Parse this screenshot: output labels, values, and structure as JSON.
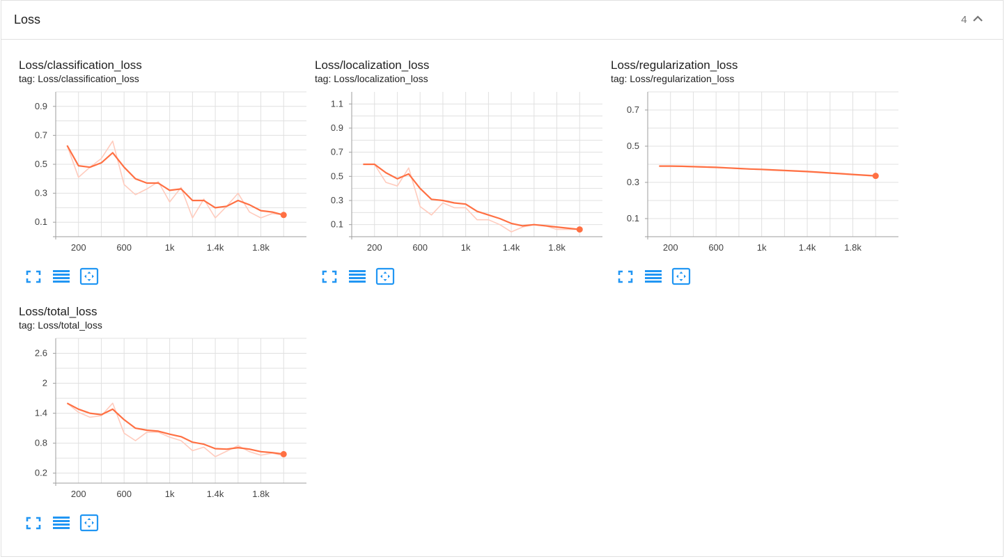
{
  "section": {
    "title": "Loss",
    "count": "4",
    "collapse_icon": "chevron-up-icon"
  },
  "colors": {
    "line": "#ff7043",
    "line_raw": "#ffcbbd",
    "grid": "#e0e0e0",
    "icon": "#2196f3"
  },
  "cards": [
    {
      "title": "Loss/classification_loss",
      "tag": "tag: Loss/classification_loss"
    },
    {
      "title": "Loss/localization_loss",
      "tag": "tag: Loss/localization_loss"
    },
    {
      "title": "Loss/regularization_loss",
      "tag": "tag: Loss/regularization_loss"
    },
    {
      "title": "Loss/total_loss",
      "tag": "tag: Loss/total_loss"
    }
  ],
  "card_buttons": [
    "fit-to-screen-icon",
    "data-table-icon",
    "fit-domain-icon"
  ],
  "chart_data": [
    {
      "type": "line",
      "title": "Loss/classification_loss",
      "xlim": [
        0,
        2200
      ],
      "ylim": [
        0,
        1.0
      ],
      "xticks": [
        200,
        600,
        1000,
        1400,
        1800
      ],
      "xtick_labels": [
        "200",
        "600",
        "1k",
        "1.4k",
        "1.8k"
      ],
      "yticks": [
        0.1,
        0.3,
        0.5,
        0.7,
        0.9
      ],
      "ytick_labels": [
        "0.1",
        "0.3",
        "0.5",
        "0.7",
        "0.9"
      ],
      "series": [
        {
          "name": "raw",
          "x": [
            100,
            200,
            300,
            400,
            500,
            600,
            700,
            800,
            900,
            1000,
            1100,
            1200,
            1300,
            1400,
            1500,
            1600,
            1700,
            1800,
            1900,
            2000
          ],
          "values": [
            0.63,
            0.41,
            0.48,
            0.54,
            0.66,
            0.36,
            0.29,
            0.33,
            0.38,
            0.24,
            0.34,
            0.13,
            0.26,
            0.13,
            0.21,
            0.3,
            0.17,
            0.13,
            0.16,
            0.15
          ]
        },
        {
          "name": "smoothed",
          "x": [
            100,
            200,
            300,
            400,
            500,
            600,
            700,
            800,
            900,
            1000,
            1100,
            1200,
            1300,
            1400,
            1500,
            1600,
            1700,
            1800,
            1900,
            2000
          ],
          "values": [
            0.63,
            0.49,
            0.48,
            0.51,
            0.58,
            0.48,
            0.4,
            0.37,
            0.37,
            0.32,
            0.33,
            0.25,
            0.25,
            0.2,
            0.21,
            0.25,
            0.22,
            0.18,
            0.17,
            0.15
          ]
        }
      ]
    },
    {
      "type": "line",
      "title": "Loss/localization_loss",
      "xlim": [
        0,
        2200
      ],
      "ylim": [
        0,
        1.2
      ],
      "xticks": [
        200,
        600,
        1000,
        1400,
        1800
      ],
      "xtick_labels": [
        "200",
        "600",
        "1k",
        "1.4k",
        "1.8k"
      ],
      "yticks": [
        0.1,
        0.3,
        0.5,
        0.7,
        0.9,
        1.1
      ],
      "ytick_labels": [
        "0.1",
        "0.3",
        "0.5",
        "0.7",
        "0.9",
        "1.1"
      ],
      "series": [
        {
          "name": "raw",
          "x": [
            100,
            200,
            300,
            400,
            500,
            600,
            700,
            800,
            900,
            1000,
            1100,
            1200,
            1300,
            1400,
            1500,
            1600,
            1700,
            1800,
            1900,
            2000
          ],
          "values": [
            0.6,
            0.6,
            0.45,
            0.42,
            0.57,
            0.25,
            0.18,
            0.28,
            0.24,
            0.24,
            0.14,
            0.14,
            0.1,
            0.04,
            0.08,
            0.1,
            0.09,
            0.06,
            0.06,
            0.06
          ]
        },
        {
          "name": "smoothed",
          "x": [
            100,
            200,
            300,
            400,
            500,
            600,
            700,
            800,
            900,
            1000,
            1100,
            1200,
            1300,
            1400,
            1500,
            1600,
            1700,
            1800,
            1900,
            2000
          ],
          "values": [
            0.6,
            0.6,
            0.53,
            0.48,
            0.52,
            0.4,
            0.31,
            0.3,
            0.28,
            0.27,
            0.21,
            0.18,
            0.15,
            0.11,
            0.09,
            0.1,
            0.09,
            0.08,
            0.07,
            0.06
          ]
        }
      ]
    },
    {
      "type": "line",
      "title": "Loss/regularization_loss",
      "xlim": [
        0,
        2200
      ],
      "ylim": [
        0,
        0.8
      ],
      "xticks": [
        200,
        600,
        1000,
        1400,
        1800
      ],
      "xtick_labels": [
        "200",
        "600",
        "1k",
        "1.4k",
        "1.8k"
      ],
      "yticks": [
        0.1,
        0.3,
        0.5,
        0.7
      ],
      "ytick_labels": [
        "0.1",
        "0.3",
        "0.5",
        "0.7"
      ],
      "series": [
        {
          "name": "raw",
          "x": [
            100,
            200,
            300,
            400,
            500,
            600,
            700,
            800,
            900,
            1000,
            1100,
            1200,
            1300,
            1400,
            1500,
            1600,
            1700,
            1800,
            1900,
            2000
          ],
          "values": [
            0.39,
            0.39,
            0.388,
            0.386,
            0.384,
            0.382,
            0.379,
            0.376,
            0.373,
            0.37,
            0.367,
            0.364,
            0.361,
            0.358,
            0.354,
            0.35,
            0.346,
            0.342,
            0.338,
            0.334
          ]
        },
        {
          "name": "smoothed",
          "x": [
            100,
            200,
            300,
            400,
            500,
            600,
            700,
            800,
            900,
            1000,
            1100,
            1200,
            1300,
            1400,
            1500,
            1600,
            1700,
            1800,
            1900,
            2000
          ],
          "values": [
            0.39,
            0.39,
            0.389,
            0.387,
            0.385,
            0.383,
            0.38,
            0.377,
            0.374,
            0.372,
            0.369,
            0.366,
            0.363,
            0.36,
            0.356,
            0.352,
            0.348,
            0.344,
            0.34,
            0.336
          ]
        }
      ]
    },
    {
      "type": "line",
      "title": "Loss/total_loss",
      "xlim": [
        0,
        2200
      ],
      "ylim": [
        0,
        2.9
      ],
      "xticks": [
        200,
        600,
        1000,
        1400,
        1800
      ],
      "xtick_labels": [
        "200",
        "600",
        "1k",
        "1.4k",
        "1.8k"
      ],
      "yticks": [
        0.2,
        0.8,
        1.4,
        2.0,
        2.6
      ],
      "ytick_labels": [
        "0.2",
        "0.8",
        "1.4",
        "2",
        "2.6"
      ],
      "series": [
        {
          "name": "raw",
          "x": [
            100,
            200,
            300,
            400,
            500,
            600,
            700,
            800,
            900,
            1000,
            1100,
            1200,
            1300,
            1400,
            1500,
            1600,
            1700,
            1800,
            1900,
            2000
          ],
          "values": [
            1.6,
            1.42,
            1.32,
            1.35,
            1.6,
            1.0,
            0.85,
            1.02,
            1.02,
            0.92,
            0.85,
            0.65,
            0.72,
            0.53,
            0.64,
            0.75,
            0.63,
            0.56,
            0.6,
            0.55
          ]
        },
        {
          "name": "smoothed",
          "x": [
            100,
            200,
            300,
            400,
            500,
            600,
            700,
            800,
            900,
            1000,
            1100,
            1200,
            1300,
            1400,
            1500,
            1600,
            1700,
            1800,
            1900,
            2000
          ],
          "values": [
            1.6,
            1.48,
            1.4,
            1.37,
            1.48,
            1.27,
            1.1,
            1.06,
            1.04,
            0.98,
            0.93,
            0.82,
            0.78,
            0.69,
            0.68,
            0.71,
            0.68,
            0.63,
            0.61,
            0.58
          ]
        }
      ]
    }
  ]
}
